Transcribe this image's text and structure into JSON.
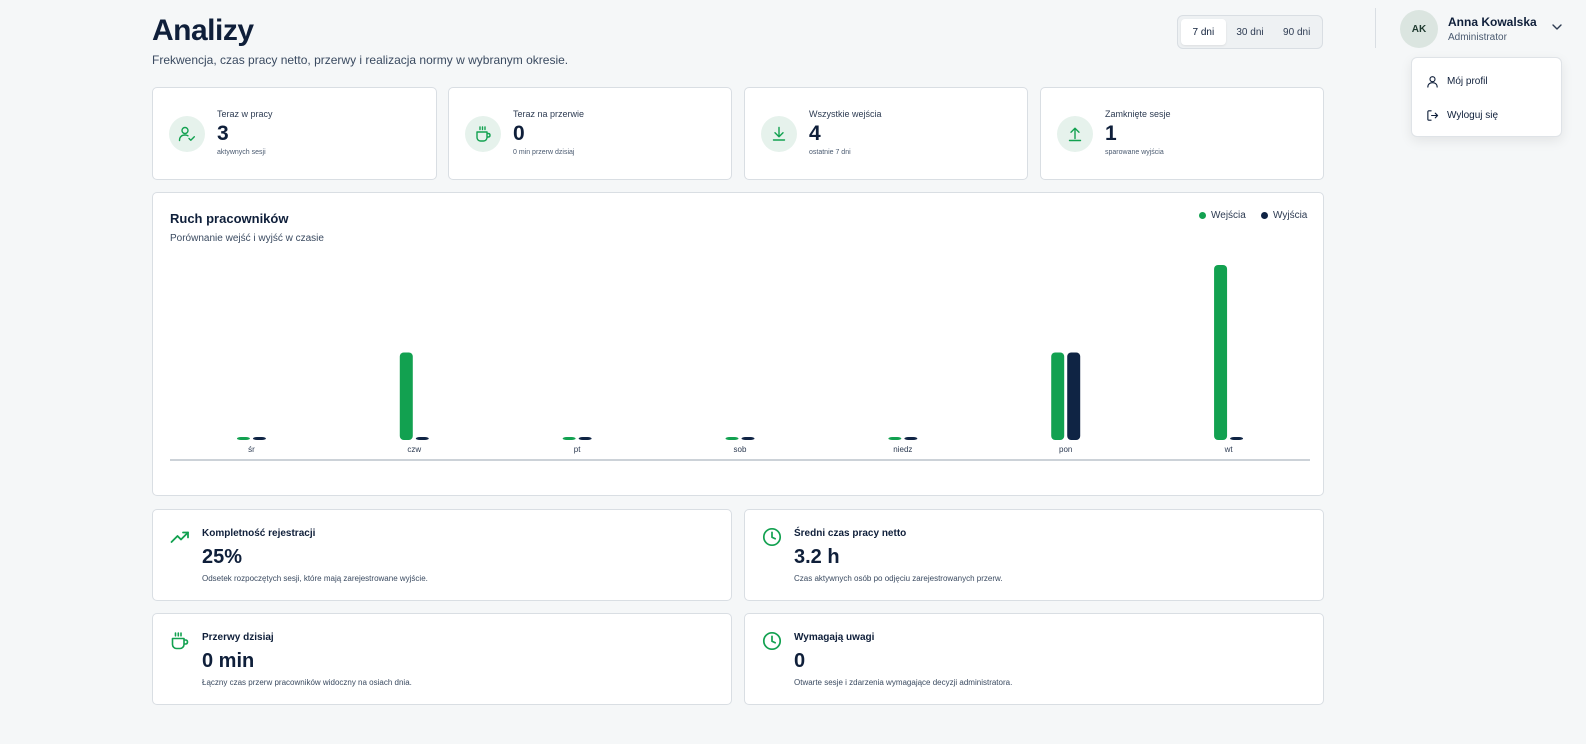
{
  "header": {
    "title": "Analizy",
    "subtitle": "Frekwencja, czas pracy netto, przerwy i realizacja normy w wybranym okresie."
  },
  "range": {
    "options": [
      "7 dni",
      "30 dni",
      "90 dni"
    ],
    "selected": "7 dni"
  },
  "user": {
    "initials": "AK",
    "name": "Anna Kowalska",
    "role": "Administrator"
  },
  "user_menu": {
    "items": [
      {
        "label": "Mój profil",
        "icon": "user-icon"
      },
      {
        "label": "Wyloguj się",
        "icon": "logout-icon"
      }
    ]
  },
  "stats": [
    {
      "label": "Teraz w pracy",
      "value": "3",
      "sub": "aktywnych sesji",
      "icon": "user-check-icon"
    },
    {
      "label": "Teraz na przerwie",
      "value": "0",
      "sub": "0 min przerw dzisiaj",
      "icon": "coffee-icon"
    },
    {
      "label": "Wszystkie wejścia",
      "value": "4",
      "sub": "ostatnie 7 dni",
      "icon": "arrow-down-icon"
    },
    {
      "label": "Zamknięte sesje",
      "value": "1",
      "sub": "sparowane wyjścia",
      "icon": "arrow-up-icon"
    }
  ],
  "chart": {
    "title": "Ruch pracowników",
    "subtitle": "Porównanie wejść i wyjść w czasie"
  },
  "colors": {
    "entries": "#12a150",
    "exits": "#0f2444"
  },
  "chart_data": {
    "type": "bar",
    "title": "Ruch pracowników",
    "subtitle": "Porównanie wejść i wyjść w czasie",
    "categories": [
      "śr",
      "czw",
      "pt",
      "sob",
      "niedz",
      "pon",
      "wt"
    ],
    "series": [
      {
        "name": "Wejścia",
        "values": [
          0,
          1,
          0,
          0,
          0,
          1,
          2
        ]
      },
      {
        "name": "Wyjścia",
        "values": [
          0,
          0,
          0,
          0,
          0,
          1,
          0
        ]
      }
    ],
    "ylim": [
      0,
      2
    ],
    "legend": "top-right",
    "grid": false
  },
  "metrics": [
    {
      "label": "Kompletność rejestracji",
      "value": "25%",
      "desc": "Odsetek rozpoczętych sesji, które mają zarejestrowane wyjście.",
      "icon": "trending-up-icon"
    },
    {
      "label": "Średni czas pracy netto",
      "value": "3.2 h",
      "desc": "Czas aktywnych osób po odjęciu zarejestrowanych przerw.",
      "icon": "clock-icon"
    },
    {
      "label": "Przerwy dzisiaj",
      "value": "0 min",
      "desc": "Łączny czas przerw pracowników widoczny na osiach dnia.",
      "icon": "coffee-icon"
    },
    {
      "label": "Wymagają uwagi",
      "value": "0",
      "desc": "Otwarte sesje i zdarzenia wymagające decyzji administratora.",
      "icon": "clock-icon"
    }
  ]
}
